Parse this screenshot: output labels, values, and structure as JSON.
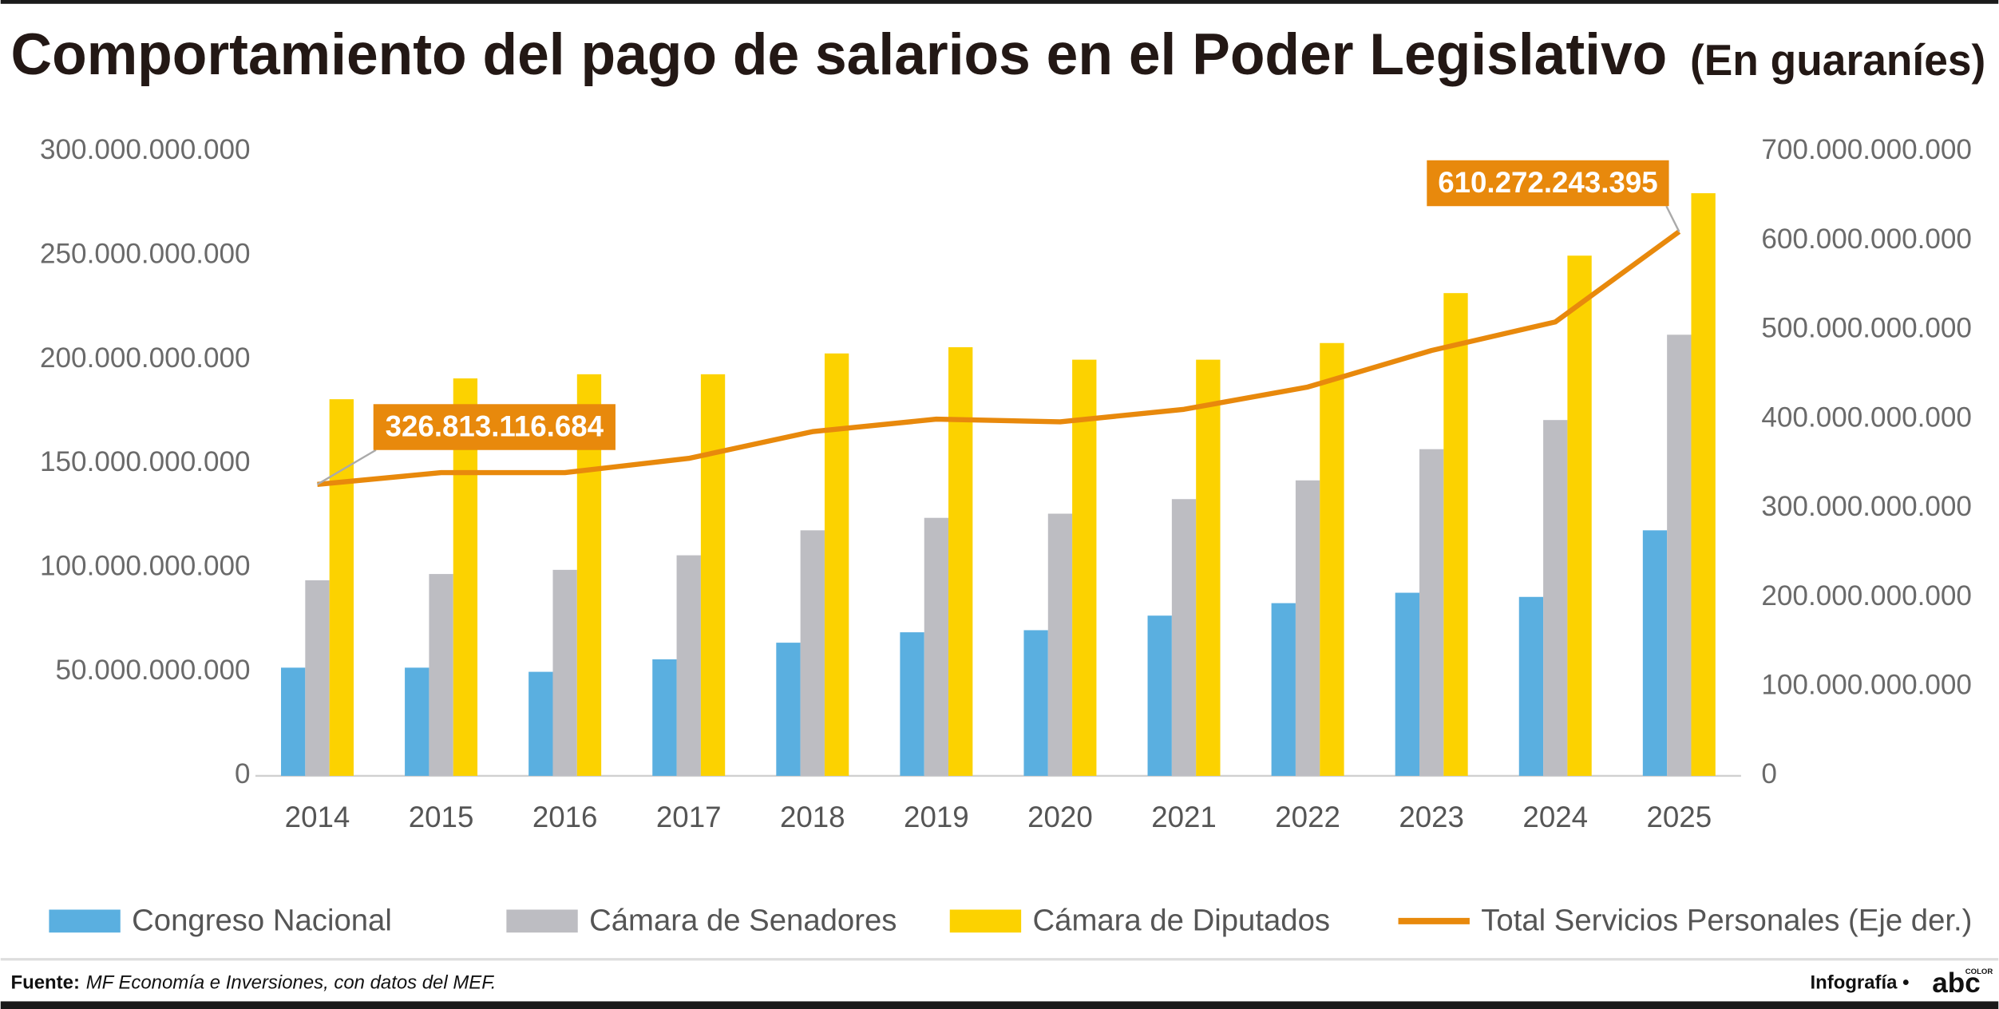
{
  "chart_data": {
    "type": "bar",
    "title": "Comportamiento del pago de salarios en el Poder Legislativo",
    "subtitle": "(En guaraníes)",
    "categories": [
      "2014",
      "2015",
      "2016",
      "2017",
      "2018",
      "2019",
      "2020",
      "2021",
      "2022",
      "2023",
      "2024",
      "2025"
    ],
    "series": [
      {
        "name": "Congreso Nacional",
        "color": "#5aafe0",
        "type": "bar",
        "values": [
          52000000000,
          52000000000,
          50000000000,
          56000000000,
          64000000000,
          69000000000,
          70000000000,
          77000000000,
          83000000000,
          88000000000,
          86000000000,
          118000000000
        ]
      },
      {
        "name": "Cámara de Senadores",
        "color": "#bdbdc2",
        "type": "bar",
        "values": [
          94000000000,
          97000000000,
          99000000000,
          106000000000,
          118000000000,
          124000000000,
          126000000000,
          133000000000,
          142000000000,
          157000000000,
          171000000000,
          212000000000
        ]
      },
      {
        "name": "Cámara de Diputados",
        "color": "#fcd200",
        "type": "bar",
        "values": [
          181000000000,
          191000000000,
          193000000000,
          193000000000,
          203000000000,
          206000000000,
          200000000000,
          200000000000,
          208000000000,
          232000000000,
          250000000000,
          280000000000
        ]
      },
      {
        "name": "Total Servicios Personales (Eje der.)",
        "color": "#e8890c",
        "type": "line",
        "axis": "y2",
        "values": [
          326813116684,
          340000000000,
          340000000000,
          356000000000,
          386000000000,
          400000000000,
          397000000000,
          411000000000,
          436000000000,
          477000000000,
          509000000000,
          610272243395
        ],
        "value_labels": [
          "326.813.116.684",
          null,
          null,
          null,
          null,
          null,
          null,
          null,
          null,
          null,
          null,
          "610.272.243.395"
        ]
      }
    ],
    "ylim": [
      0,
      300000000000
    ],
    "yticks": [
      0,
      {
        "value": 50000000000,
        "label": "50.000.000.000"
      },
      {
        "value": 100000000000,
        "label": "100.000.000.000"
      },
      {
        "value": 150000000000,
        "label": "150.000.000.000"
      },
      {
        "value": 200000000000,
        "label": "200.000.000.000"
      },
      {
        "value": 250000000000,
        "label": "250.000.000.000"
      },
      {
        "value": 300000000000,
        "label": "300.000.000.000"
      }
    ],
    "y2lim": [
      0,
      700000000000
    ],
    "y2ticks": [
      0,
      {
        "value": 100000000000,
        "label": "100.000.000.000"
      },
      {
        "value": 200000000000,
        "label": "200.000.000.000"
      },
      {
        "value": 300000000000,
        "label": "300.000.000.000"
      },
      {
        "value": 400000000000,
        "label": "400.000.000.000"
      },
      {
        "value": 500000000000,
        "label": "500.000.000.000"
      },
      {
        "value": 600000000000,
        "label": "600.000.000.000"
      },
      {
        "value": 700000000000,
        "label": "700.000.000.000"
      }
    ],
    "grid": false,
    "legend": "bottom"
  },
  "footer": {
    "source_label": "Fuente:",
    "source": "MF Economía e Inversiones, con datos del MEF.",
    "credit": "Infografía •",
    "logo": "abc",
    "logo_sub": "COLOR"
  }
}
